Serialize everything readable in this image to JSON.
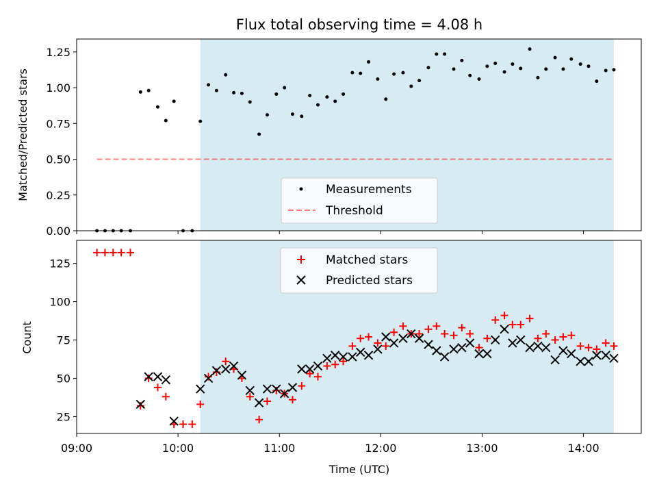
{
  "chart_data": [
    {
      "type": "scatter",
      "title": "Flux total observing time = 4.08 h",
      "ylabel": "Matched/Predicted stars",
      "xlabel": "",
      "ylim": [
        0,
        1.34
      ],
      "yticks": [
        0.0,
        0.25,
        0.5,
        0.75,
        1.0,
        1.25
      ],
      "ytick_labels": [
        "0.00",
        "0.25",
        "0.50",
        "0.75",
        "1.00",
        "1.25"
      ],
      "x_unit": "hours UTC",
      "xlim": [
        9.0,
        14.57
      ],
      "shaded_span": [
        10.22,
        14.3
      ],
      "threshold": {
        "name": "Threshold",
        "y": 0.5,
        "x_range": [
          9.2,
          14.3
        ]
      },
      "legend_location": "lower center",
      "series": [
        {
          "name": "Measurements",
          "x": [
            9.2,
            9.28,
            9.36,
            9.44,
            9.53,
            9.63,
            9.71,
            9.8,
            9.88,
            9.96,
            10.05,
            10.14,
            10.22,
            10.3,
            10.38,
            10.47,
            10.55,
            10.63,
            10.71,
            10.8,
            10.88,
            10.97,
            11.05,
            11.13,
            11.22,
            11.3,
            11.38,
            11.47,
            11.55,
            11.63,
            11.72,
            11.8,
            11.88,
            11.97,
            12.05,
            12.13,
            12.22,
            12.3,
            12.38,
            12.47,
            12.55,
            12.63,
            12.72,
            12.8,
            12.88,
            12.97,
            13.05,
            13.13,
            13.22,
            13.3,
            13.38,
            13.47,
            13.55,
            13.63,
            13.72,
            13.8,
            13.88,
            13.97,
            14.05,
            14.13,
            14.22,
            14.3
          ],
          "y": [
            0,
            0,
            0,
            0,
            0,
            0.97,
            0.98,
            0.865,
            0.77,
            0.905,
            0,
            0,
            0.765,
            1.02,
            0.98,
            1.09,
            0.965,
            0.96,
            0.9,
            0.675,
            0.81,
            0.955,
            1.0,
            0.815,
            0.8,
            0.945,
            0.88,
            0.935,
            0.905,
            0.955,
            1.105,
            1.1,
            1.18,
            1.06,
            0.92,
            1.095,
            1.105,
            1.01,
            1.05,
            1.14,
            1.235,
            1.235,
            1.13,
            1.19,
            1.085,
            1.06,
            1.15,
            1.17,
            1.11,
            1.165,
            1.135,
            1.27,
            1.07,
            1.13,
            1.21,
            1.13,
            1.2,
            1.165,
            1.15,
            1.045,
            1.12,
            1.125
          ]
        }
      ]
    },
    {
      "type": "scatter",
      "title": "",
      "xlabel": "Time (UTC)",
      "ylabel": "Count",
      "ylim": [
        14,
        140
      ],
      "yticks": [
        25,
        50,
        75,
        100,
        125
      ],
      "ytick_labels": [
        "25",
        "50",
        "75",
        "100",
        "125"
      ],
      "x_unit": "hours UTC",
      "xlim": [
        9.0,
        14.57
      ],
      "xticks": [
        9,
        10,
        11,
        12,
        13,
        14
      ],
      "xtick_labels": [
        "09:00",
        "10:00",
        "11:00",
        "12:00",
        "13:00",
        "14:00"
      ],
      "shaded_span": [
        10.22,
        14.3
      ],
      "legend_location": "upper center",
      "series": [
        {
          "name": "Matched stars",
          "color": "#ff0000",
          "x": [
            9.2,
            9.28,
            9.36,
            9.44,
            9.53,
            9.63,
            9.71,
            9.8,
            9.88,
            9.96,
            10.05,
            10.14,
            10.22,
            10.3,
            10.38,
            10.47,
            10.55,
            10.63,
            10.71,
            10.8,
            10.88,
            10.97,
            11.05,
            11.13,
            11.22,
            11.3,
            11.38,
            11.47,
            11.55,
            11.63,
            11.72,
            11.8,
            11.88,
            11.97,
            12.05,
            12.13,
            12.22,
            12.3,
            12.38,
            12.47,
            12.55,
            12.63,
            12.72,
            12.8,
            12.88,
            12.97,
            13.05,
            13.13,
            13.22,
            13.3,
            13.38,
            13.47,
            13.55,
            13.63,
            13.72,
            13.8,
            13.88,
            13.97,
            14.05,
            14.13,
            14.22,
            14.3
          ],
          "y": [
            132,
            132,
            132,
            132,
            132,
            32,
            50,
            44,
            38,
            20,
            20,
            20,
            33,
            51,
            54,
            61,
            56,
            50,
            38,
            23,
            35,
            42,
            40,
            36,
            45,
            53,
            51,
            58,
            59,
            61,
            71,
            76,
            77,
            73,
            71,
            80,
            84,
            79,
            79,
            82,
            84,
            79,
            78,
            83,
            79,
            70,
            76,
            88,
            91,
            85,
            85,
            89,
            76,
            79,
            75,
            77,
            78,
            71,
            70,
            69,
            73,
            71
          ]
        },
        {
          "name": "Predicted stars",
          "color": "#000000",
          "x": [
            9.63,
            9.71,
            9.8,
            9.88,
            9.96,
            10.22,
            10.3,
            10.38,
            10.47,
            10.55,
            10.63,
            10.71,
            10.8,
            10.88,
            10.97,
            11.05,
            11.13,
            11.22,
            11.3,
            11.38,
            11.47,
            11.55,
            11.63,
            11.72,
            11.8,
            11.88,
            11.97,
            12.05,
            12.13,
            12.22,
            12.3,
            12.38,
            12.47,
            12.55,
            12.63,
            12.72,
            12.8,
            12.88,
            12.97,
            13.05,
            13.13,
            13.22,
            13.3,
            13.38,
            13.47,
            13.55,
            13.63,
            13.72,
            13.8,
            13.88,
            13.97,
            14.05,
            14.13,
            14.22,
            14.3
          ],
          "y": [
            33,
            51,
            51,
            49,
            22,
            43,
            50,
            55,
            56,
            58,
            52,
            42,
            34,
            43,
            43,
            40,
            44,
            56,
            56,
            58,
            63,
            65,
            64,
            64,
            67,
            65,
            69,
            77,
            73,
            76,
            79,
            76,
            72,
            68,
            64,
            69,
            70,
            73,
            66,
            66,
            75,
            82,
            73,
            75,
            70,
            71,
            70,
            62,
            68,
            66,
            61,
            61,
            65,
            65,
            63
          ]
        }
      ]
    }
  ]
}
